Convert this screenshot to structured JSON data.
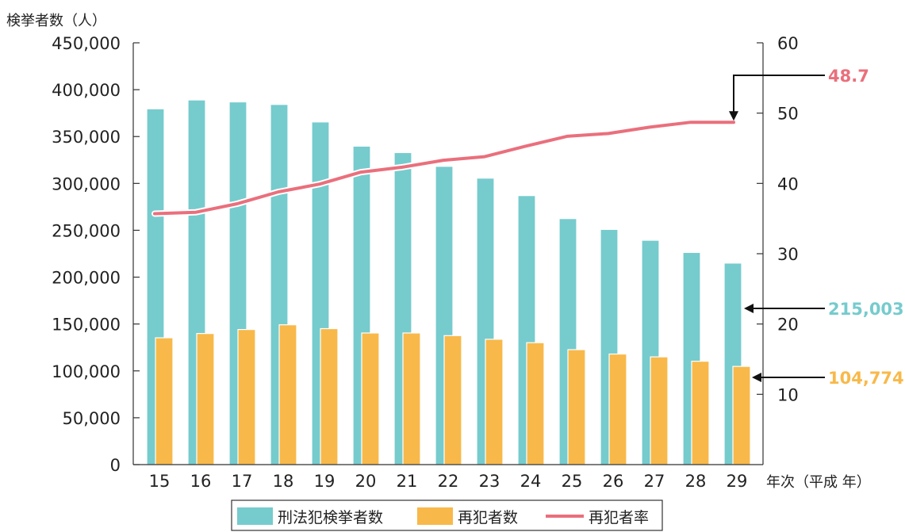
{
  "chart_data": {
    "type": "bar",
    "categories": [
      "15",
      "16",
      "17",
      "18",
      "19",
      "20",
      "21",
      "22",
      "23",
      "24",
      "25",
      "26",
      "27",
      "28",
      "29"
    ],
    "series": [
      {
        "name": "刑法犯検挙者数",
        "axis": "left",
        "kind": "bar",
        "color": "#76CBCD",
        "values": [
          379602,
          389027,
          386955,
          384250,
          365577,
          339752,
          332888,
          318221,
          305631,
          287021,
          262486,
          250915,
          239355,
          226376,
          215003
        ]
      },
      {
        "name": "再犯者数",
        "axis": "left",
        "kind": "bar",
        "color": "#F8B94A",
        "values": [
          135295,
          139869,
          144134,
          149164,
          145052,
          140431,
          140431,
          137614,
          133724,
          130077,
          122638,
          117971,
          114944,
          110306,
          104774
        ]
      },
      {
        "name": "再犯者率",
        "axis": "right",
        "kind": "line",
        "color": "#EA6F7C",
        "values": [
          35.7,
          35.9,
          37.1,
          38.8,
          39.9,
          41.6,
          42.3,
          43.3,
          43.8,
          45.3,
          46.7,
          47.1,
          48.0,
          48.7,
          48.7
        ]
      }
    ],
    "ylabel_left": "検挙者数（人）",
    "xlabel": "年次（平成  年）",
    "ylim_left": [
      0,
      450000
    ],
    "yticks_left": [
      "0",
      "50,000",
      "100,000",
      "150,000",
      "200,000",
      "250,000",
      "300,000",
      "350,000",
      "400,000",
      "450,000"
    ],
    "ylim_right": [
      0,
      60
    ],
    "yticks_right": [
      "10",
      "20",
      "30",
      "40",
      "50",
      "60"
    ],
    "callouts": [
      {
        "label": "48.7",
        "series": 2,
        "color": "#EA6F7C"
      },
      {
        "label": "215,003",
        "series": 0,
        "color": "#76CBCD"
      },
      {
        "label": "104,774",
        "series": 1,
        "color": "#F8B94A"
      }
    ],
    "legend": {
      "placement": "bottom",
      "entries": [
        "刑法犯検挙者数",
        "再犯者数",
        "再犯者率"
      ]
    },
    "grid": false
  }
}
